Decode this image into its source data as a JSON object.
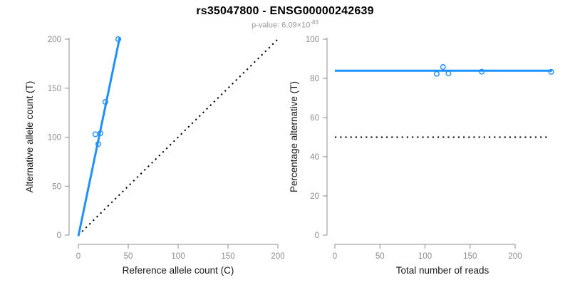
{
  "header": {
    "title": "rs35047800 - ENSG00000242639",
    "p_value": {
      "prefix": "p-value: 6.09×10",
      "exponent": "-83"
    }
  },
  "colors": {
    "fit_line": "#1E90FF",
    "reference_line": "#000000",
    "axis": "#8C8C8C",
    "tick_labels": "#8C8C8C",
    "axis_titles": "#1A1A1A",
    "title": "#000000",
    "subtitle": "#999999",
    "background": "#FFFFFF"
  },
  "chart_data": [
    {
      "type": "scatter",
      "panel": "allele-counts",
      "xlabel": "Reference allele count (C)",
      "ylabel": "Alternative allele count (T)",
      "xlim": [
        0,
        200
      ],
      "ylim": [
        0,
        200
      ],
      "xticks": [
        0,
        50,
        100,
        150,
        200
      ],
      "yticks": [
        0,
        50,
        100,
        150,
        200
      ],
      "grid": false,
      "legend": null,
      "points": [
        [
          17,
          103
        ],
        [
          20,
          93
        ],
        [
          22,
          104
        ],
        [
          27,
          136
        ],
        [
          40,
          200
        ]
      ],
      "fit_line": {
        "from": [
          0,
          -1
        ],
        "to": [
          41.5,
          202
        ]
      },
      "identity_line": {
        "from": [
          0,
          0
        ],
        "to": [
          200,
          200
        ],
        "style": "dotted"
      }
    },
    {
      "type": "scatter",
      "panel": "percentage-vs-depth",
      "xlabel": "Total number of reads",
      "ylabel": "Percentage alternative (T)",
      "xlim": [
        0,
        241
      ],
      "ylim": [
        0,
        100
      ],
      "xticks": [
        0,
        50,
        100,
        150,
        200
      ],
      "yticks": [
        0,
        20,
        40,
        60,
        80,
        100
      ],
      "grid": false,
      "legend": null,
      "points": [
        [
          113,
          82.3
        ],
        [
          120,
          85.8
        ],
        [
          126,
          82.5
        ],
        [
          163,
          83.4
        ],
        [
          240,
          83.3
        ]
      ],
      "fit_line": {
        "y": 83.9,
        "x_from": 0,
        "x_to": 241
      },
      "reference_line": {
        "y": 50,
        "x_from": 0,
        "x_to": 238,
        "style": "dotted"
      }
    }
  ]
}
